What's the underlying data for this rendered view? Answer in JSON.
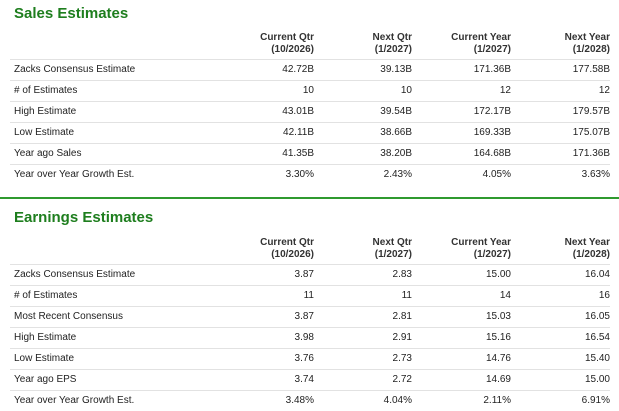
{
  "sales": {
    "title": "Sales Estimates",
    "headers": [
      {
        "line1": "Current Qtr",
        "line2": "(10/2026)"
      },
      {
        "line1": "Next Qtr",
        "line2": "(1/2027)"
      },
      {
        "line1": "Current Year",
        "line2": "(1/2027)"
      },
      {
        "line1": "Next Year",
        "line2": "(1/2028)"
      }
    ],
    "rows": [
      {
        "label": "Zacks Consensus Estimate",
        "values": [
          "42.72B",
          "39.13B",
          "171.36B",
          "177.58B"
        ]
      },
      {
        "label": "# of Estimates",
        "values": [
          "10",
          "10",
          "12",
          "12"
        ]
      },
      {
        "label": "High Estimate",
        "values": [
          "43.01B",
          "39.54B",
          "172.17B",
          "179.57B"
        ]
      },
      {
        "label": "Low Estimate",
        "values": [
          "42.11B",
          "38.66B",
          "169.33B",
          "175.07B"
        ]
      },
      {
        "label": "Year ago Sales",
        "values": [
          "41.35B",
          "38.20B",
          "164.68B",
          "171.36B"
        ]
      },
      {
        "label": "Year over Year Growth Est.",
        "values": [
          "3.30%",
          "2.43%",
          "4.05%",
          "3.63%"
        ]
      }
    ]
  },
  "earnings": {
    "title": "Earnings Estimates",
    "headers": [
      {
        "line1": "Current Qtr",
        "line2": "(10/2026)"
      },
      {
        "line1": "Next Qtr",
        "line2": "(1/2027)"
      },
      {
        "line1": "Current Year",
        "line2": "(1/2027)"
      },
      {
        "line1": "Next Year",
        "line2": "(1/2028)"
      }
    ],
    "rows": [
      {
        "label": "Zacks Consensus Estimate",
        "values": [
          "3.87",
          "2.83",
          "15.00",
          "16.04"
        ]
      },
      {
        "label": "# of Estimates",
        "values": [
          "11",
          "11",
          "14",
          "16"
        ]
      },
      {
        "label": "Most Recent Consensus",
        "values": [
          "3.87",
          "2.81",
          "15.03",
          "16.05"
        ]
      },
      {
        "label": "High Estimate",
        "values": [
          "3.98",
          "2.91",
          "15.16",
          "16.54"
        ]
      },
      {
        "label": "Low Estimate",
        "values": [
          "3.76",
          "2.73",
          "14.76",
          "15.40"
        ]
      },
      {
        "label": "Year ago EPS",
        "values": [
          "3.74",
          "2.72",
          "14.69",
          "15.00"
        ]
      },
      {
        "label": "Year over Year Growth Est.",
        "values": [
          "3.48%",
          "4.04%",
          "2.11%",
          "6.91%"
        ]
      }
    ]
  },
  "colors": {
    "accent": "#1e7e1e",
    "divider": "#2f9a2f",
    "row_border": "#e2e2e2"
  }
}
